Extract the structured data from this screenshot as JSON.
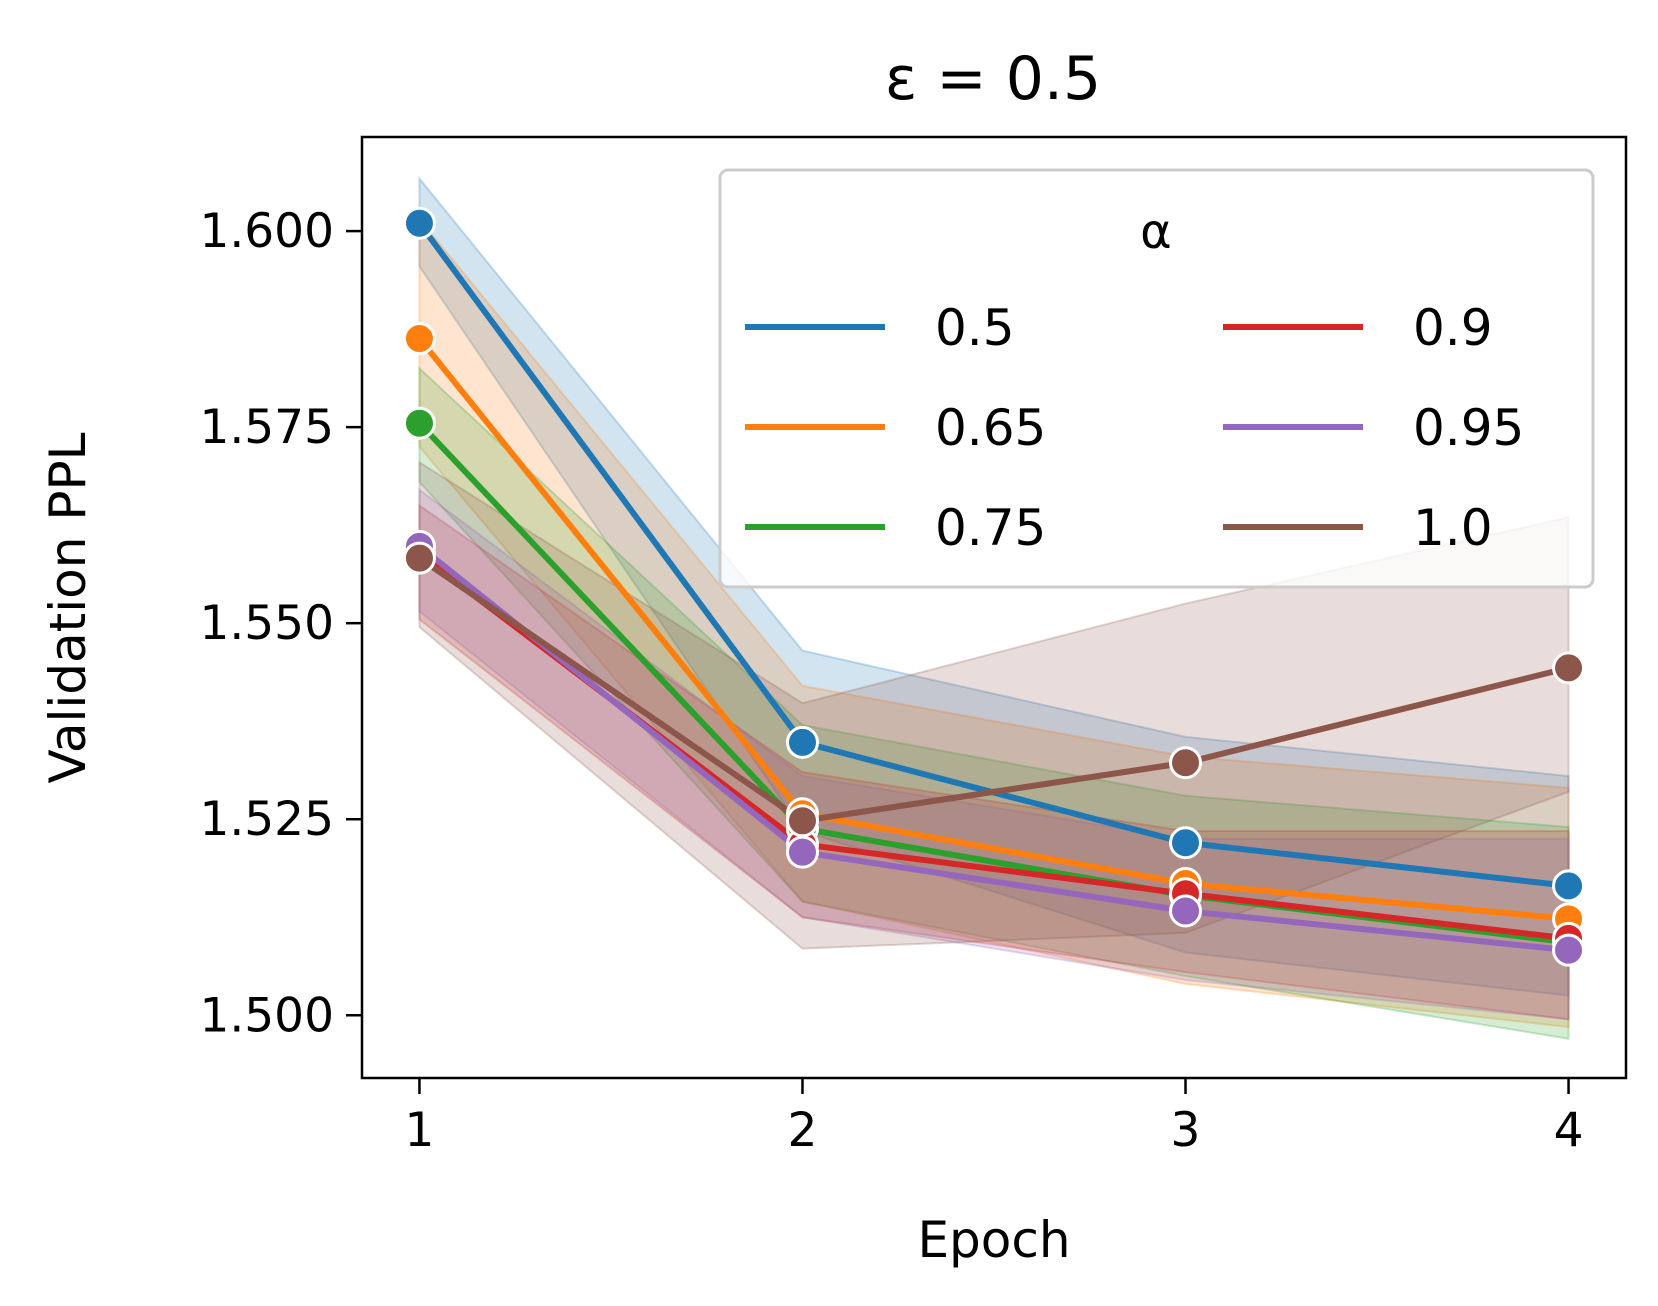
{
  "chart_data": {
    "type": "line",
    "title": "ε = 0.5",
    "xlabel": "Epoch",
    "ylabel": "Validation PPL",
    "x": [
      1,
      2,
      3,
      4
    ],
    "x_tick_labels": [
      "1",
      "2",
      "3",
      "4"
    ],
    "xlim": [
      0.85,
      4.15
    ],
    "ylim": [
      1.492,
      1.612
    ],
    "y_ticks": [
      1.5,
      1.525,
      1.55,
      1.575,
      1.6
    ],
    "y_tick_labels": [
      "1.500",
      "1.525",
      "1.550",
      "1.575",
      "1.600"
    ],
    "grid": false,
    "legend": {
      "title": "α",
      "location": "top-right",
      "columns": 2
    },
    "series": [
      {
        "name": "0.5",
        "color": "#1f77b4",
        "values": [
          1.601,
          1.5348,
          1.522,
          1.5165
        ],
        "ci_lower": [
          1.5955,
          1.5235,
          1.508,
          1.5025
        ],
        "ci_upper": [
          1.6067,
          1.5465,
          1.5355,
          1.5305
        ]
      },
      {
        "name": "0.65",
        "color": "#ff7f0e",
        "values": [
          1.5863,
          1.5257,
          1.5168,
          1.5123
        ],
        "ci_lower": [
          1.5725,
          1.5145,
          1.504,
          1.4985
        ],
        "ci_upper": [
          1.6015,
          1.542,
          1.533,
          1.529
        ]
      },
      {
        "name": "0.75",
        "color": "#2ca02c",
        "values": [
          1.5755,
          1.5238,
          1.5153,
          1.5093
        ],
        "ci_lower": [
          1.568,
          1.5145,
          1.505,
          1.497
        ],
        "ci_upper": [
          1.5825,
          1.537,
          1.528,
          1.524
        ]
      },
      {
        "name": "0.9",
        "color": "#d62728",
        "values": [
          1.5588,
          1.5218,
          1.5155,
          1.5098
        ],
        "ci_lower": [
          1.5505,
          1.5125,
          1.5055,
          1.4995
        ],
        "ci_upper": [
          1.565,
          1.531,
          1.5235,
          1.5235
        ]
      },
      {
        "name": "0.95",
        "color": "#9467bd",
        "values": [
          1.5598,
          1.5208,
          1.5133,
          1.5083
        ],
        "ci_lower": [
          1.5515,
          1.5125,
          1.5045,
          1.4995
        ],
        "ci_upper": [
          1.567,
          1.5305,
          1.5225,
          1.5225
        ]
      },
      {
        "name": "1.0",
        "color": "#8c564b",
        "values": [
          1.5583,
          1.5248,
          1.5322,
          1.5443
        ],
        "ci_lower": [
          1.5495,
          1.5085,
          1.5105,
          1.5285
        ],
        "ci_upper": [
          1.5705,
          1.5398,
          1.5525,
          1.5635
        ]
      }
    ]
  }
}
